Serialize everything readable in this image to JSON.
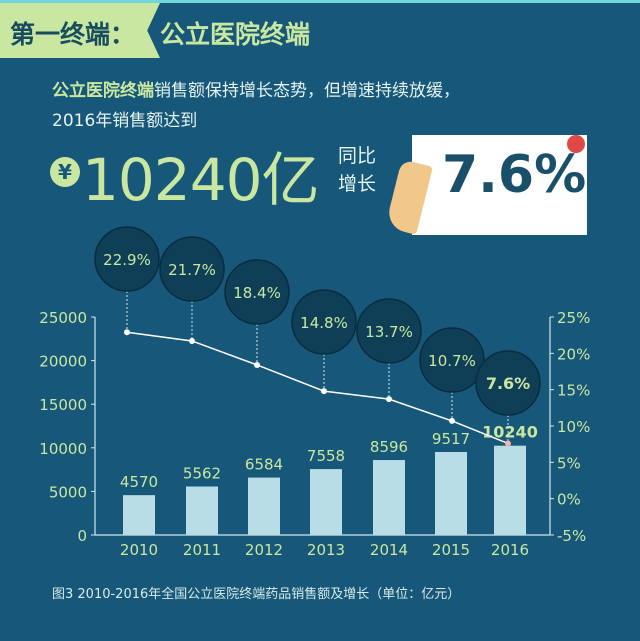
{
  "header": {
    "tag": "第一终端：",
    "section": "公立医院终端"
  },
  "lead": {
    "highlight": "公立医院终端",
    "line1_rest": "销售额保持增长态势，但增速持续放缓，",
    "line2": "2016年销售额达到"
  },
  "headline": {
    "currency_symbol": "¥",
    "amount": "10240亿",
    "yoy_label": "同比增长",
    "yoy_value": "7.6%"
  },
  "caption": "图3  2010-2016年全国公立医院终端药品销售额及增长（单位：亿元）",
  "colors": {
    "background": "#17587a",
    "accent": "#c9e7a0",
    "bar": "#b9dde6",
    "line": "#ffffff",
    "bubble": "#0f3f57"
  },
  "chart_data": {
    "type": "bar+line",
    "categories": [
      "2010",
      "2011",
      "2012",
      "2013",
      "2014",
      "2015",
      "2016"
    ],
    "series": [
      {
        "type": "bar",
        "axis": "left",
        "values": [
          4570,
          5562,
          6584,
          7558,
          8596,
          9517,
          10240
        ],
        "labels": [
          "4570",
          "5562",
          "6584",
          "7558",
          "8596",
          "9517",
          "10240"
        ]
      },
      {
        "type": "line",
        "axis": "right",
        "values": [
          22.9,
          21.7,
          18.4,
          14.8,
          13.7,
          10.7,
          7.6
        ],
        "labels": [
          "22.9%",
          "21.7%",
          "18.4%",
          "14.8%",
          "13.7%",
          "10.7%",
          "7.6%"
        ]
      }
    ],
    "y_left": {
      "range": [
        0,
        25000
      ],
      "ticks": [
        "0",
        "5000",
        "10000",
        "15000",
        "20000",
        "25000"
      ]
    },
    "y_right": {
      "range": [
        -5,
        25
      ],
      "ticks": [
        "-5%",
        "0%",
        "5%",
        "10%",
        "15%",
        "20%",
        "25%"
      ]
    },
    "grid": false
  }
}
